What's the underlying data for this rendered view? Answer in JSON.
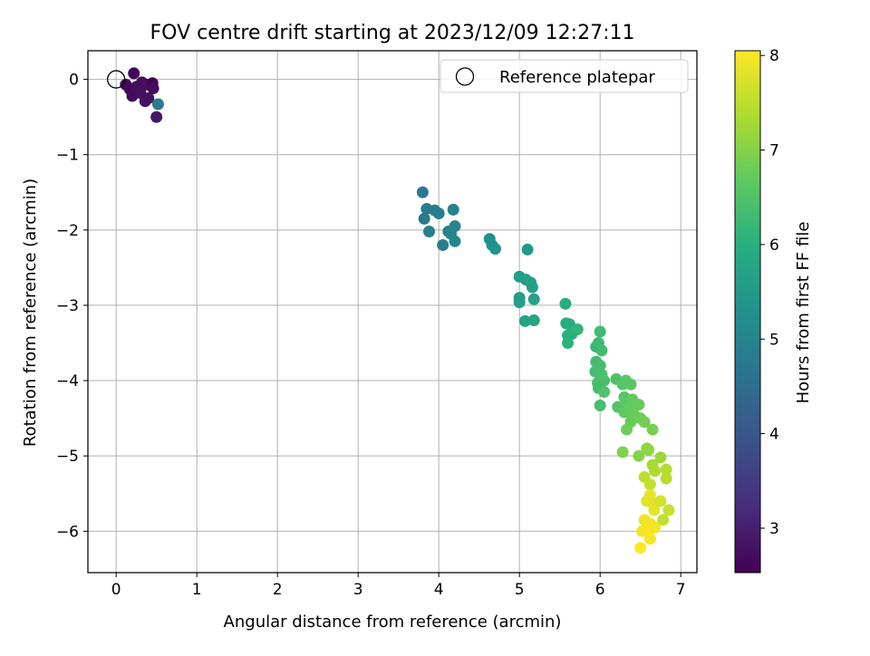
{
  "chart_data": {
    "type": "scatter",
    "title": "FOV centre drift starting at 2023/12/09 12:27:11",
    "xlabel": "Angular distance from reference (arcmin)",
    "ylabel": "Rotation from reference (arcmin)",
    "xlim": [
      -0.35,
      7.2
    ],
    "ylim": [
      -6.55,
      0.38
    ],
    "xticks": [
      0,
      1,
      2,
      3,
      4,
      5,
      6,
      7
    ],
    "yticks": [
      0,
      -1,
      -2,
      -3,
      -4,
      -5,
      -6
    ],
    "xtick_labels": [
      "0",
      "1",
      "2",
      "3",
      "4",
      "5",
      "6",
      "7"
    ],
    "ytick_labels": [
      "0",
      "−1",
      "−2",
      "−3",
      "−4",
      "−5",
      "−6"
    ],
    "grid": true,
    "legend": {
      "position": "top-right",
      "entries": [
        "Reference platepar"
      ]
    },
    "reference_point": {
      "x": 0,
      "y": 0
    },
    "colorbar": {
      "label": "Hours from first FF file",
      "colormap": "viridis",
      "range": [
        2.53,
        8.05
      ],
      "ticks": [
        3,
        4,
        5,
        6,
        7,
        8
      ],
      "tick_labels": [
        "3",
        "4",
        "5",
        "6",
        "7",
        "8"
      ]
    },
    "points": [
      {
        "x": 0.22,
        "y": 0.08,
        "h": 2.6
      },
      {
        "x": 0.12,
        "y": -0.07,
        "h": 2.6
      },
      {
        "x": 0.17,
        "y": -0.13,
        "h": 2.6
      },
      {
        "x": 0.2,
        "y": -0.22,
        "h": 2.65
      },
      {
        "x": 0.25,
        "y": -0.1,
        "h": 2.7
      },
      {
        "x": 0.32,
        "y": -0.04,
        "h": 2.7
      },
      {
        "x": 0.38,
        "y": -0.07,
        "h": 2.75
      },
      {
        "x": 0.3,
        "y": -0.18,
        "h": 2.75
      },
      {
        "x": 0.4,
        "y": -0.25,
        "h": 2.8
      },
      {
        "x": 0.36,
        "y": -0.29,
        "h": 2.8
      },
      {
        "x": 0.45,
        "y": -0.05,
        "h": 2.6
      },
      {
        "x": 0.46,
        "y": -0.12,
        "h": 2.65
      },
      {
        "x": 0.5,
        "y": -0.5,
        "h": 2.85
      },
      {
        "x": 0.52,
        "y": -0.33,
        "h": 4.8
      },
      {
        "x": 3.8,
        "y": -1.5,
        "h": 4.75
      },
      {
        "x": 3.85,
        "y": -1.72,
        "h": 4.8
      },
      {
        "x": 3.82,
        "y": -1.85,
        "h": 4.8
      },
      {
        "x": 3.95,
        "y": -1.74,
        "h": 4.85
      },
      {
        "x": 4.0,
        "y": -1.78,
        "h": 4.85
      },
      {
        "x": 3.88,
        "y": -2.02,
        "h": 4.9
      },
      {
        "x": 4.05,
        "y": -2.2,
        "h": 4.9
      },
      {
        "x": 4.12,
        "y": -2.02,
        "h": 4.95
      },
      {
        "x": 4.18,
        "y": -1.73,
        "h": 4.95
      },
      {
        "x": 4.2,
        "y": -1.95,
        "h": 5.0
      },
      {
        "x": 4.15,
        "y": -2.05,
        "h": 5.0
      },
      {
        "x": 4.2,
        "y": -2.15,
        "h": 5.05
      },
      {
        "x": 4.63,
        "y": -2.12,
        "h": 5.3
      },
      {
        "x": 4.66,
        "y": -2.2,
        "h": 5.3
      },
      {
        "x": 4.7,
        "y": -2.25,
        "h": 5.35
      },
      {
        "x": 5.1,
        "y": -2.26,
        "h": 5.5
      },
      {
        "x": 5.0,
        "y": -2.62,
        "h": 5.6
      },
      {
        "x": 5.08,
        "y": -2.66,
        "h": 5.6
      },
      {
        "x": 5.14,
        "y": -2.7,
        "h": 5.65
      },
      {
        "x": 5.16,
        "y": -2.76,
        "h": 5.65
      },
      {
        "x": 5.0,
        "y": -2.9,
        "h": 5.6
      },
      {
        "x": 5.0,
        "y": -2.96,
        "h": 5.65
      },
      {
        "x": 5.18,
        "y": -2.92,
        "h": 5.7
      },
      {
        "x": 5.07,
        "y": -3.21,
        "h": 5.7
      },
      {
        "x": 5.18,
        "y": -3.2,
        "h": 5.75
      },
      {
        "x": 5.57,
        "y": -2.98,
        "h": 5.9
      },
      {
        "x": 5.58,
        "y": -3.24,
        "h": 5.9
      },
      {
        "x": 5.62,
        "y": -3.25,
        "h": 5.95
      },
      {
        "x": 5.6,
        "y": -3.4,
        "h": 6.0
      },
      {
        "x": 5.65,
        "y": -3.38,
        "h": 6.0
      },
      {
        "x": 5.6,
        "y": -3.5,
        "h": 6.05
      },
      {
        "x": 5.72,
        "y": -3.32,
        "h": 6.1
      },
      {
        "x": 5.95,
        "y": -3.55,
        "h": 6.2
      },
      {
        "x": 6.0,
        "y": -3.35,
        "h": 6.3
      },
      {
        "x": 5.98,
        "y": -3.5,
        "h": 6.25
      },
      {
        "x": 6.02,
        "y": -3.6,
        "h": 6.3
      },
      {
        "x": 5.95,
        "y": -3.75,
        "h": 6.3
      },
      {
        "x": 6.0,
        "y": -3.8,
        "h": 6.35
      },
      {
        "x": 5.94,
        "y": -3.88,
        "h": 6.35
      },
      {
        "x": 6.02,
        "y": -3.92,
        "h": 6.4
      },
      {
        "x": 5.97,
        "y": -4.03,
        "h": 6.4
      },
      {
        "x": 6.05,
        "y": -4.0,
        "h": 6.45
      },
      {
        "x": 5.98,
        "y": -4.1,
        "h": 6.3
      },
      {
        "x": 6.05,
        "y": -4.15,
        "h": 6.5
      },
      {
        "x": 6.0,
        "y": -4.33,
        "h": 6.4
      },
      {
        "x": 6.2,
        "y": -3.98,
        "h": 6.5
      },
      {
        "x": 6.28,
        "y": -4.05,
        "h": 6.55
      },
      {
        "x": 6.32,
        "y": -4.0,
        "h": 6.6
      },
      {
        "x": 6.38,
        "y": -4.05,
        "h": 6.6
      },
      {
        "x": 6.22,
        "y": -4.35,
        "h": 6.55
      },
      {
        "x": 6.3,
        "y": -4.22,
        "h": 6.6
      },
      {
        "x": 6.34,
        "y": -4.3,
        "h": 6.65
      },
      {
        "x": 6.3,
        "y": -4.42,
        "h": 6.65
      },
      {
        "x": 6.36,
        "y": -4.38,
        "h": 6.7
      },
      {
        "x": 6.4,
        "y": -4.25,
        "h": 6.7
      },
      {
        "x": 6.42,
        "y": -4.45,
        "h": 6.75
      },
      {
        "x": 6.38,
        "y": -4.55,
        "h": 6.75
      },
      {
        "x": 6.33,
        "y": -4.65,
        "h": 6.8
      },
      {
        "x": 6.48,
        "y": -4.32,
        "h": 6.75
      },
      {
        "x": 6.5,
        "y": -4.5,
        "h": 6.8
      },
      {
        "x": 6.55,
        "y": -4.55,
        "h": 6.85
      },
      {
        "x": 6.65,
        "y": -4.65,
        "h": 6.9
      },
      {
        "x": 6.28,
        "y": -4.95,
        "h": 6.95
      },
      {
        "x": 6.48,
        "y": -5.0,
        "h": 7.0
      },
      {
        "x": 6.58,
        "y": -4.9,
        "h": 7.05
      },
      {
        "x": 6.6,
        "y": -4.92,
        "h": 7.1
      },
      {
        "x": 6.75,
        "y": -5.02,
        "h": 7.2
      },
      {
        "x": 6.65,
        "y": -5.12,
        "h": 7.3
      },
      {
        "x": 6.68,
        "y": -5.2,
        "h": 7.35
      },
      {
        "x": 6.82,
        "y": -5.18,
        "h": 7.4
      },
      {
        "x": 6.82,
        "y": -5.3,
        "h": 7.45
      },
      {
        "x": 6.55,
        "y": -5.28,
        "h": 7.5
      },
      {
        "x": 6.62,
        "y": -5.38,
        "h": 7.55
      },
      {
        "x": 6.58,
        "y": -5.6,
        "h": 7.8
      },
      {
        "x": 6.62,
        "y": -5.52,
        "h": 7.85
      },
      {
        "x": 6.65,
        "y": -5.62,
        "h": 7.8
      },
      {
        "x": 6.67,
        "y": -5.72,
        "h": 7.85
      },
      {
        "x": 6.75,
        "y": -5.6,
        "h": 7.7
      },
      {
        "x": 6.85,
        "y": -5.72,
        "h": 7.6
      },
      {
        "x": 6.78,
        "y": -5.85,
        "h": 7.55
      },
      {
        "x": 6.55,
        "y": -5.85,
        "h": 7.9
      },
      {
        "x": 6.62,
        "y": -5.9,
        "h": 7.95
      },
      {
        "x": 6.52,
        "y": -6.0,
        "h": 7.95
      },
      {
        "x": 6.6,
        "y": -6.02,
        "h": 8.0
      },
      {
        "x": 6.68,
        "y": -5.95,
        "h": 7.95
      },
      {
        "x": 6.62,
        "y": -6.1,
        "h": 8.0
      },
      {
        "x": 6.5,
        "y": -6.22,
        "h": 8.05
      }
    ]
  }
}
